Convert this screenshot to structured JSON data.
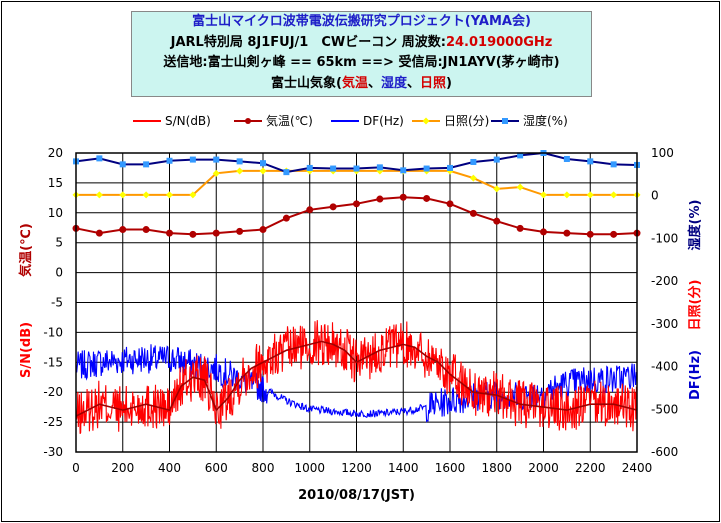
{
  "title": {
    "line1": "富士山マイクロ波帯電波伝搬研究プロジェクト(YAMA会)",
    "line2_prefix": "JARL特別局 8J1FUJ/1　CWビーコン 周波数:",
    "line2_freq": "24.019000GHz",
    "line3": "送信地:富士山剣ヶ峰 == 65km ==> 受信局:JN1AYV(茅ヶ崎市)",
    "line4_prefix": "富士山気象(",
    "line4_temp": "気温",
    "line4_sep1": "、",
    "line4_hum": "湿度",
    "line4_sep2": "、",
    "line4_sun": "日照",
    "line4_suffix": ")"
  },
  "colors": {
    "sn": "#ff0000",
    "sn_avg": "#a00000",
    "temp": "#b00000",
    "df": "#0000ff",
    "sun": "#ff9900",
    "sun_marker": "#ffff00",
    "humidity": "#000080",
    "humidity_marker": "#3399ff"
  },
  "chart_data": {
    "type": "line",
    "xlabel": "2010/08/17(JST)",
    "x_ticks": [
      0,
      200,
      400,
      600,
      800,
      1000,
      1200,
      1400,
      1600,
      1800,
      2000,
      2200,
      2400
    ],
    "xlim": [
      0,
      2400
    ],
    "y_left": {
      "ylim": [
        -30,
        20
      ],
      "ticks": [
        20,
        15,
        10,
        5,
        0,
        -5,
        -10,
        -15,
        -20,
        -25,
        -30
      ],
      "label_temp": "気温(℃)",
      "label_sn": "S/N(dB)"
    },
    "y_right": {
      "ylim": [
        -600,
        100
      ],
      "ticks": [
        100,
        0,
        -100,
        -200,
        -300,
        -400,
        -500,
        -600
      ],
      "label_humidity": "湿度(%)",
      "label_sun": "日照(分)",
      "label_df": "DF(Hz)"
    },
    "legend": {
      "placement": "top",
      "items": [
        "S/N(dB)",
        "気温(℃)",
        "DF(Hz)",
        "日照(分)",
        "湿度(%)"
      ]
    },
    "series": [
      {
        "name": "気温(℃)",
        "axis": "left",
        "x": [
          0,
          100,
          200,
          300,
          400,
          500,
          600,
          700,
          800,
          900,
          1000,
          1100,
          1200,
          1300,
          1400,
          1500,
          1600,
          1700,
          1800,
          1900,
          2000,
          2100,
          2200,
          2300,
          2400
        ],
        "values": [
          7.4,
          6.6,
          7.2,
          7.2,
          6.6,
          6.4,
          6.6,
          6.9,
          7.2,
          9.1,
          10.5,
          11.0,
          11.5,
          12.3,
          12.6,
          12.4,
          11.5,
          9.9,
          8.6,
          7.4,
          6.8,
          6.6,
          6.4,
          6.4,
          6.6
        ]
      },
      {
        "name": "日照(分)",
        "axis": "left",
        "x": [
          0,
          100,
          200,
          300,
          400,
          500,
          600,
          700,
          800,
          900,
          1000,
          1100,
          1200,
          1300,
          1400,
          1500,
          1600,
          1700,
          1800,
          1900,
          2000,
          2100,
          2200,
          2300,
          2400
        ],
        "values": [
          13,
          13,
          13,
          13,
          13,
          13,
          16.6,
          17,
          17,
          17,
          17,
          17,
          17,
          17,
          17,
          17,
          17,
          15.8,
          14,
          14.3,
          13,
          13,
          13,
          13,
          13
        ]
      },
      {
        "name": "湿度(%)",
        "axis": "left",
        "x": [
          0,
          100,
          200,
          300,
          400,
          500,
          600,
          700,
          800,
          900,
          1000,
          1100,
          1200,
          1300,
          1400,
          1500,
          1600,
          1700,
          1800,
          1900,
          2000,
          2100,
          2200,
          2300,
          2400
        ],
        "values": [
          18.6,
          19.1,
          18.1,
          18.1,
          18.7,
          18.9,
          18.9,
          18.6,
          18.3,
          16.8,
          17.5,
          17.4,
          17.4,
          17.6,
          17.1,
          17.4,
          17.5,
          18.5,
          18.9,
          19.6,
          20.0,
          19.0,
          18.6,
          18.1,
          18.0
        ]
      },
      {
        "name": "DF(Hz)",
        "axis": "right",
        "x": [
          0,
          100,
          200,
          300,
          350,
          400,
          500,
          600,
          700,
          800,
          900,
          1000,
          1100,
          1200,
          1300,
          1400,
          1500,
          1600,
          1700,
          1800,
          1900,
          2000,
          2100,
          2200,
          2300,
          2400
        ],
        "values": [
          -400,
          -390,
          -385,
          -380,
          -385,
          -380,
          -395,
          -405,
          -430,
          -450,
          -480,
          -500,
          -505,
          -510,
          -510,
          -505,
          -495,
          -480,
          -470,
          -465,
          -470,
          -460,
          -440,
          -430,
          -430,
          -420
        ]
      },
      {
        "name": "S/N(dB)",
        "axis": "left",
        "x": [
          0,
          100,
          200,
          300,
          400,
          450,
          500,
          550,
          600,
          650,
          700,
          750,
          800,
          900,
          1000,
          1050,
          1100,
          1150,
          1200,
          1300,
          1350,
          1400,
          1450,
          1500,
          1550,
          1600,
          1700,
          1800,
          1900,
          2000,
          2100,
          2200,
          2300,
          2400
        ],
        "values": [
          -24,
          -22,
          -23,
          -22,
          -23,
          -19,
          -17.5,
          -18,
          -23,
          -21,
          -18,
          -16,
          -15,
          -13,
          -12,
          -11.5,
          -12,
          -13,
          -15,
          -13,
          -12.5,
          -12,
          -12.5,
          -14,
          -15,
          -17,
          -20,
          -20.5,
          -22,
          -22.5,
          -23,
          -22,
          -22,
          -23
        ]
      }
    ]
  }
}
